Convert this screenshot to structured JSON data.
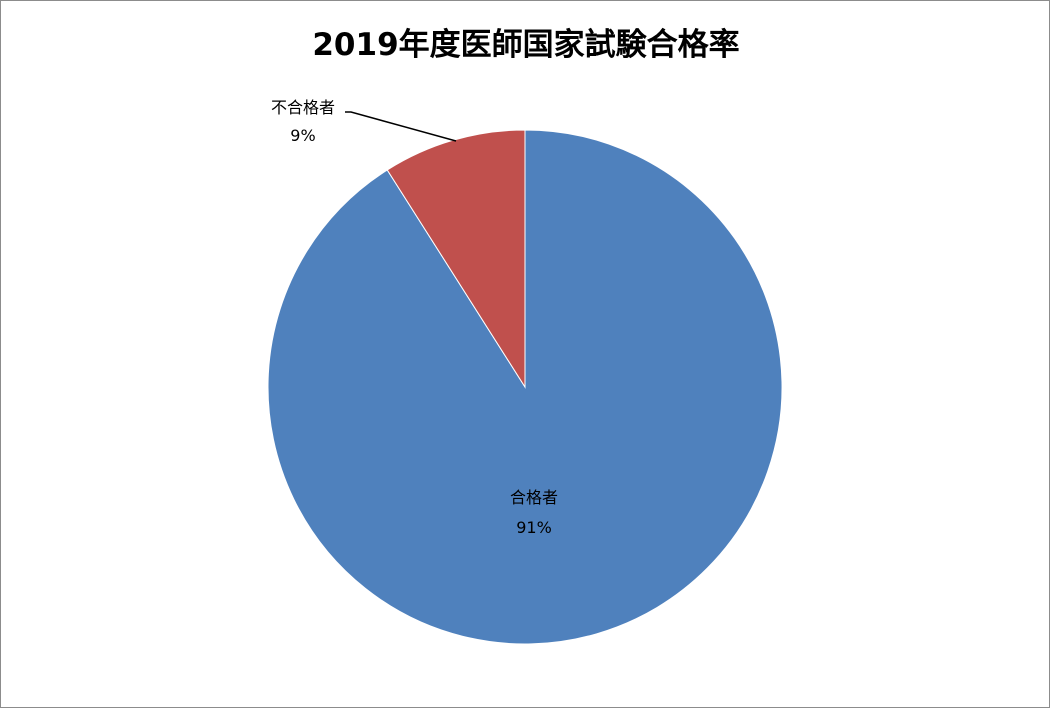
{
  "chart_data": {
    "type": "pie",
    "title": "2019年度医師国家試験合格率",
    "categories": [
      "合格者",
      "不合格者"
    ],
    "values": [
      91,
      9
    ],
    "value_labels": [
      "91%",
      "9%"
    ],
    "colors": [
      "#4f81bd",
      "#c0504d"
    ],
    "start_angle_deg": 0,
    "direction": "clockwise",
    "legend": "none"
  }
}
